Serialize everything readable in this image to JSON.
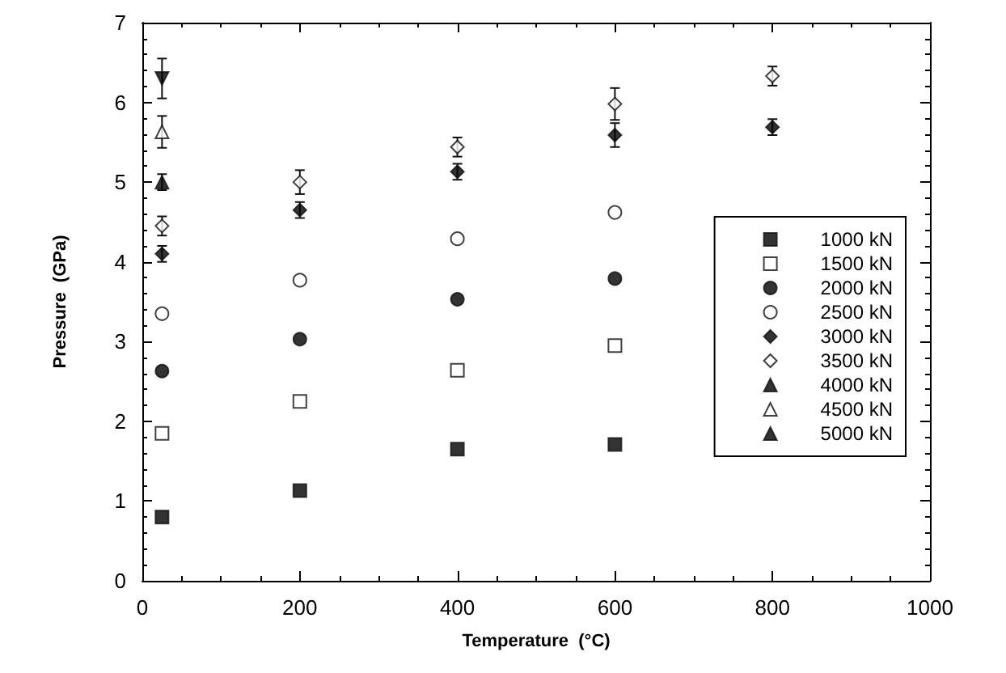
{
  "chart_data": {
    "type": "scatter",
    "xlabel": "Temperature  (°C)",
    "ylabel": "Pressure  (GPa)",
    "xlim": [
      0,
      1000
    ],
    "xticks": [
      0,
      200,
      400,
      600,
      800,
      1000
    ],
    "ylim": [
      0,
      7
    ],
    "yticks": [
      0,
      1,
      2,
      3,
      4,
      5,
      6,
      7
    ],
    "grid": false,
    "legend": "right",
    "series": [
      {
        "name": "1000 kN",
        "color": "#000000",
        "marker": "square",
        "x": [
          25,
          200,
          400,
          600
        ],
        "values": [
          0.8,
          1.13,
          1.65,
          1.71
        ]
      },
      {
        "name": "1500 kN",
        "color": "#ffffff",
        "marker": "square",
        "x": [
          25,
          200,
          400,
          600
        ],
        "values": [
          1.85,
          2.25,
          2.64,
          2.95
        ]
      },
      {
        "name": "2000 kN",
        "color": "#000000",
        "marker": "circle",
        "x": [
          25,
          200,
          400,
          600
        ],
        "values": [
          2.63,
          3.03,
          3.53,
          3.79
        ]
      },
      {
        "name": "2500 kN",
        "color": "#ffffff",
        "marker": "circle",
        "x": [
          25,
          200,
          400,
          600
        ],
        "values": [
          3.35,
          3.77,
          4.29,
          4.62
        ]
      },
      {
        "name": "3000 kN",
        "color": "#000000",
        "marker": "diamond",
        "x": [
          25,
          200,
          400,
          600,
          800
        ],
        "values": [
          4.1,
          4.65,
          5.13,
          5.59,
          5.69
        ],
        "errors": [
          0.1,
          0.1,
          0.1,
          0.15,
          0.1
        ]
      },
      {
        "name": "3500 kN",
        "color": "#ffffff",
        "marker": "diamond",
        "x": [
          25,
          200,
          400,
          600,
          800
        ],
        "values": [
          4.45,
          5.0,
          5.44,
          5.98,
          6.33
        ],
        "errors": [
          0.12,
          0.15,
          0.12,
          0.2,
          0.12
        ]
      },
      {
        "name": "4000 kN",
        "color": "#000000",
        "marker": "triangle",
        "x": [
          25
        ],
        "values": [
          5.0
        ],
        "errors": [
          0.1
        ]
      },
      {
        "name": "4500 kN",
        "color": "#ffffff",
        "marker": "triangle",
        "x": [
          25
        ],
        "values": [
          5.63
        ],
        "errors": [
          0.2
        ]
      },
      {
        "name": "5000 kN",
        "color": "#000000",
        "marker": "triangle-down",
        "x": [
          25
        ],
        "values": [
          6.3
        ],
        "errors": [
          0.25
        ]
      }
    ]
  }
}
